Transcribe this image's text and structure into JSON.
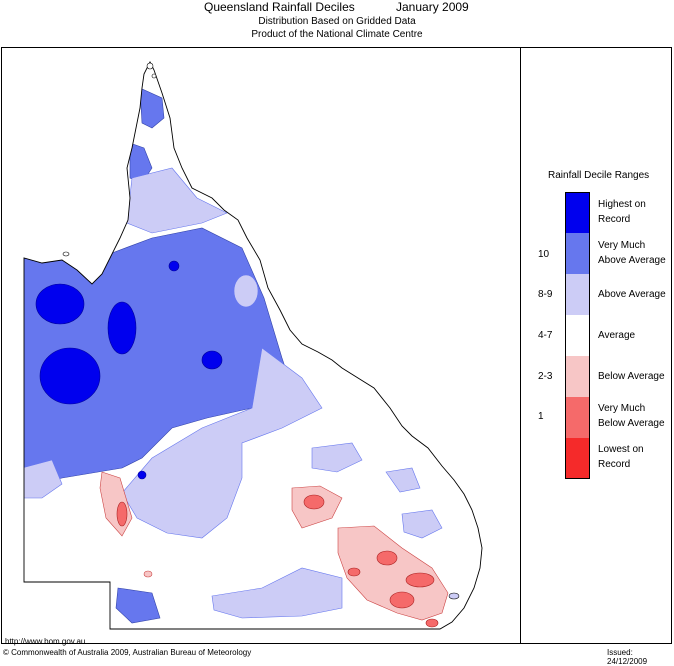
{
  "header": {
    "title": "Queensland Rainfall Deciles",
    "month": "January 2009",
    "subtitle1": "Distribution Based on Gridded Data",
    "subtitle2": "Product of the National Climate Centre"
  },
  "legend": {
    "title": "Rainfall Decile Ranges",
    "classes": [
      {
        "range": "",
        "label1": "Highest on",
        "label2": "Record",
        "color": "#0000ee"
      },
      {
        "range": "10",
        "label1": "Very Much",
        "label2": "Above Average",
        "color": "#6677ee"
      },
      {
        "range": "8-9",
        "label1": "Above Average",
        "label2": "",
        "color": "#ccccf6"
      },
      {
        "range": "4-7",
        "label1": "Average",
        "label2": "",
        "color": "#ffffff"
      },
      {
        "range": "2-3",
        "label1": "Below Average",
        "label2": "",
        "color": "#f7c6c6"
      },
      {
        "range": "1",
        "label1": "Very Much",
        "label2": "Below Average",
        "color": "#f56a6a"
      },
      {
        "range": "",
        "label1": "Lowest on",
        "label2": "Record",
        "color": "#f52a2a"
      }
    ]
  },
  "footer": {
    "url": "http://www.bom.gov.au",
    "copyright": "© Commonwealth of Australia 2009, Australian Bureau of Meteorology",
    "issued": "Issued: 24/12/2009"
  }
}
